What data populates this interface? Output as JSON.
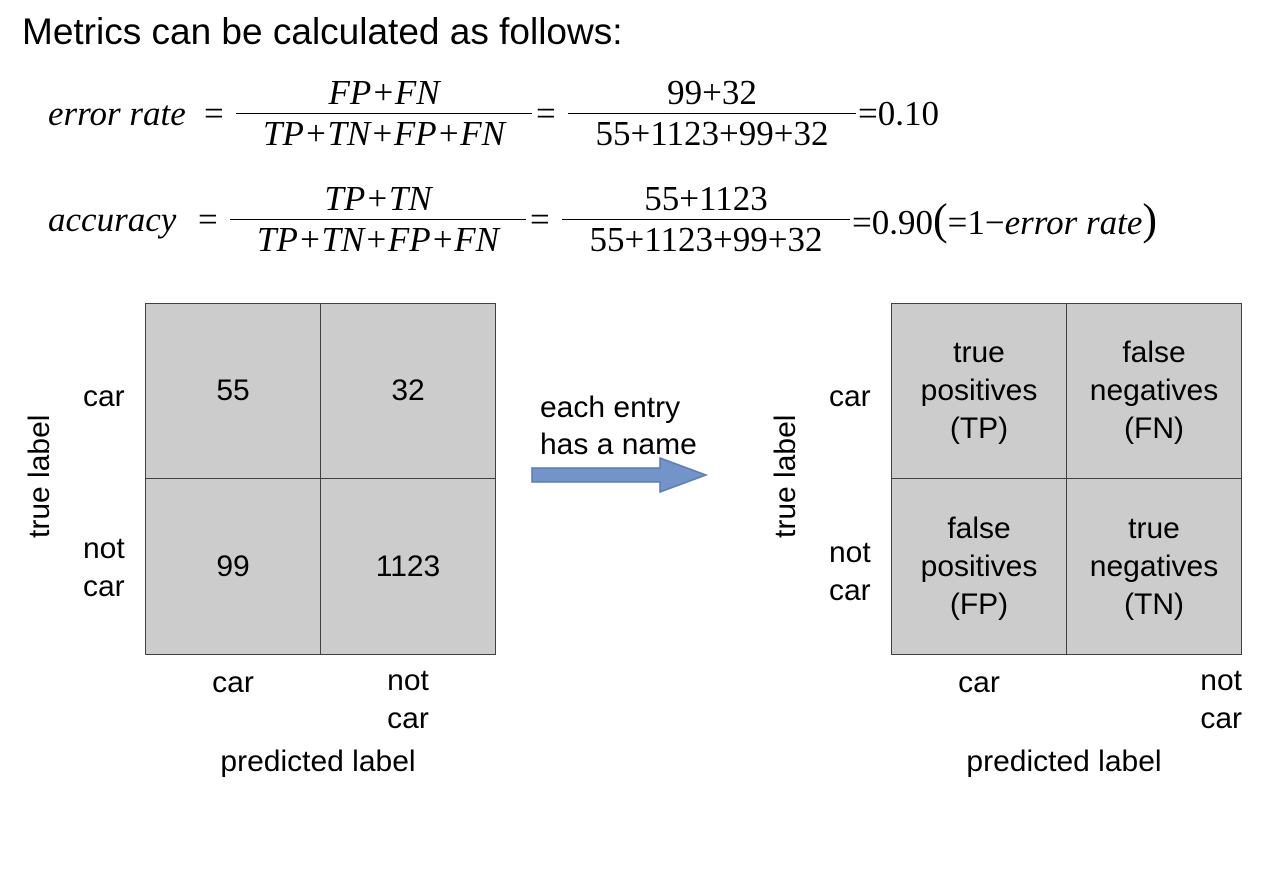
{
  "title": "Metrics can be calculated as follows:",
  "formulas": {
    "error_rate": {
      "lhs": "error rate",
      "eq1": "=",
      "num_symbolic": "FP+FN",
      "den_symbolic": "TP+TN+FP+FN",
      "eq2": "=",
      "num_numeric": "99+32",
      "den_numeric": "55+1123+99+32",
      "result": "=0.10"
    },
    "accuracy": {
      "lhs": "accuracy",
      "eq1": "=",
      "num_symbolic": "TP+TN",
      "den_symbolic": "TP+TN+FP+FN",
      "eq2": "=",
      "num_numeric": "55+1123",
      "den_numeric": "55+1123+99+32",
      "result": "=0.90",
      "note_open": "(",
      "note_eq": "=1−",
      "note_term": "error rate",
      "note_close": ")"
    }
  },
  "left_matrix": {
    "y_axis_label": "true label",
    "x_axis_label": "predicted label",
    "row_labels": [
      "car",
      "not\ncar"
    ],
    "col_labels": [
      "car",
      "not\ncar"
    ],
    "cells": [
      "55",
      "32",
      "99",
      "1123"
    ]
  },
  "arrow": {
    "text": "each entry\nhas a name",
    "color": "#7394c9"
  },
  "right_matrix": {
    "y_axis_label": "true label",
    "x_axis_label": "predicted label",
    "row_labels": [
      "car",
      "not\ncar"
    ],
    "col_labels": [
      "car",
      "not\ncar"
    ],
    "cells": [
      "true\npositives\n(TP)",
      "false\nnegatives\n(FN)",
      "false\npositives\n(FP)",
      "true\nnegatives\n(TN)"
    ]
  },
  "colors": {
    "cell_fill": "#cccccc",
    "cell_border": "#404040"
  }
}
